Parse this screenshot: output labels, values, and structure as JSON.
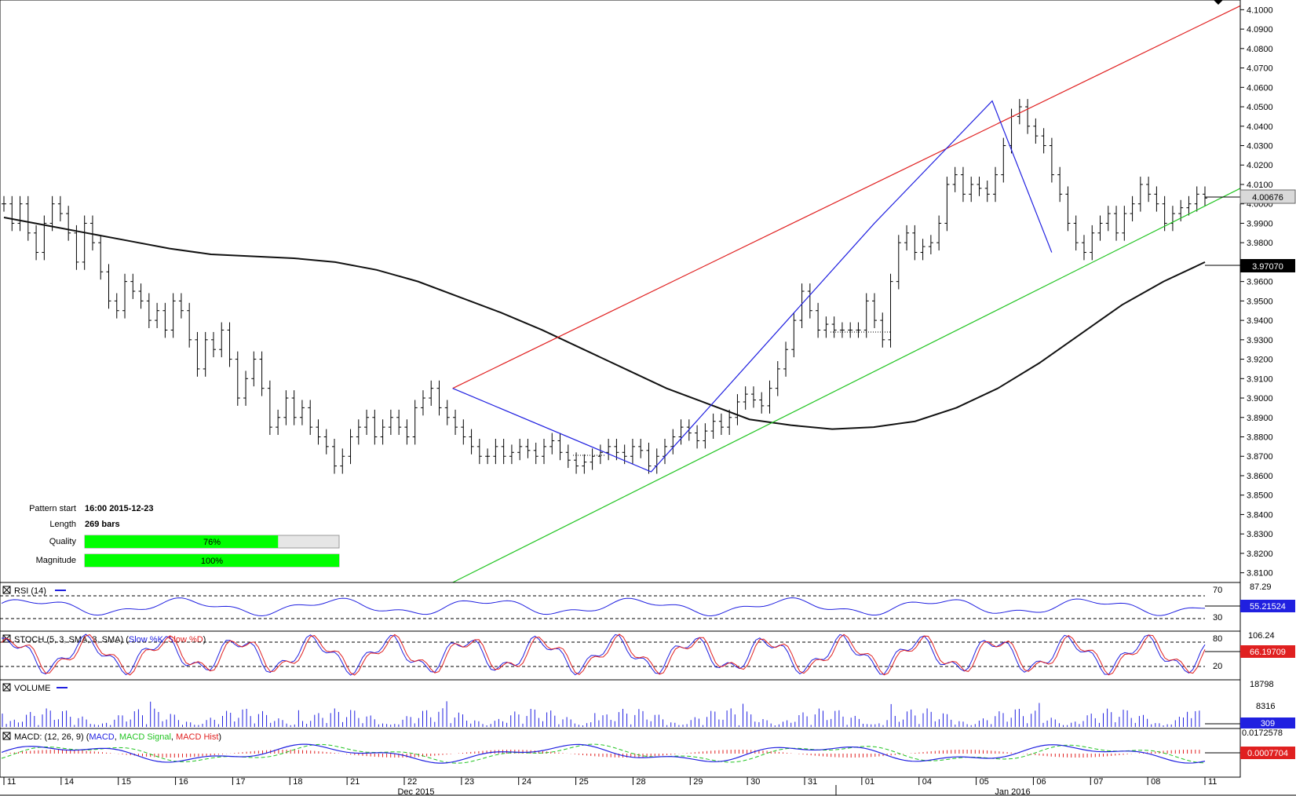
{
  "chart_data": {
    "type": "candlestick",
    "pattern_info": {
      "pattern_start_label": "Pattern start",
      "pattern_start_value": "16:00 2015-12-23",
      "length_label": "Length",
      "length_value": "269 bars",
      "quality_label": "Quality",
      "quality_value": "76%",
      "quality_fraction": 0.76,
      "magnitude_label": "Magnitude",
      "magnitude_value": "100%",
      "magnitude_fraction": 1.0
    },
    "price_axis": {
      "ylim": [
        3.805,
        4.105
      ],
      "ticks": [
        "4.1000",
        "4.0900",
        "4.0800",
        "4.0700",
        "4.0600",
        "4.0500",
        "4.0400",
        "4.0300",
        "4.0200",
        "4.0100",
        "4.0000",
        "3.9900",
        "3.9800",
        "3.9700",
        "3.9600",
        "3.9500",
        "3.9400",
        "3.9300",
        "3.9200",
        "3.9100",
        "3.9000",
        "3.8900",
        "3.8800",
        "3.8700",
        "3.8600",
        "3.8500",
        "3.8400",
        "3.8300",
        "3.8200",
        "3.8100"
      ],
      "current_price_label": "4.00676",
      "ma_price_label": "3.97070"
    },
    "x_axis": {
      "day_labels": [
        "11",
        "14",
        "15",
        "16",
        "17",
        "18",
        "21",
        "22",
        "23",
        "24",
        "25",
        "28",
        "29",
        "30",
        "31",
        "01",
        "04",
        "05",
        "06",
        "07",
        "08",
        "11"
      ],
      "month_labels": [
        "Dec 2015",
        "Jan 2016"
      ]
    },
    "price_series": [
      4.0,
      3.99,
      4.0,
      3.985,
      3.975,
      3.99,
      4.0,
      3.995,
      3.985,
      3.97,
      3.99,
      3.98,
      3.965,
      3.95,
      3.945,
      3.96,
      3.955,
      3.95,
      3.94,
      3.945,
      3.935,
      3.95,
      3.945,
      3.93,
      3.915,
      3.93,
      3.925,
      3.935,
      3.92,
      3.9,
      3.91,
      3.92,
      3.905,
      3.885,
      3.89,
      3.9,
      3.89,
      3.895,
      3.885,
      3.88,
      3.875,
      3.865,
      3.87,
      3.88,
      3.885,
      3.89,
      3.88,
      3.885,
      3.89,
      3.885,
      3.88,
      3.895,
      3.9,
      3.905,
      3.895,
      3.89,
      3.885,
      3.88,
      3.875,
      3.87,
      3.87,
      3.875,
      3.87,
      3.872,
      3.875,
      3.873,
      3.87,
      3.875,
      3.878,
      3.872,
      3.868,
      3.865,
      3.867,
      3.87,
      3.872,
      3.875,
      3.872,
      3.87,
      3.875,
      3.873,
      3.865,
      3.87,
      3.875,
      3.88,
      3.885,
      3.882,
      3.878,
      3.883,
      3.888,
      3.885,
      3.89,
      3.898,
      3.902,
      3.899,
      3.896,
      3.905,
      3.915,
      3.925,
      3.94,
      3.955,
      3.945,
      3.935,
      3.938,
      3.935,
      3.935,
      3.935,
      3.935,
      3.95,
      3.94,
      3.93,
      3.96,
      3.98,
      3.985,
      3.975,
      3.978,
      3.98,
      3.99,
      4.01,
      4.015,
      4.005,
      4.01,
      4.008,
      4.005,
      4.015,
      4.03,
      4.045,
      4.05,
      4.04,
      4.035,
      4.03,
      4.015,
      4.005,
      3.99,
      3.98,
      3.975,
      3.985,
      3.99,
      3.995,
      3.985,
      3.995,
      4.0,
      4.01,
      4.005,
      4.0,
      3.99,
      3.995,
      3.998,
      4.0,
      4.005,
      4.003
    ],
    "overlays": {
      "ma_series": [
        3.993,
        3.989,
        3.985,
        3.981,
        3.977,
        3.974,
        3.973,
        3.972,
        3.97,
        3.966,
        3.96,
        3.952,
        3.944,
        3.935,
        3.925,
        3.915,
        3.905,
        3.897,
        3.889,
        3.886,
        3.884,
        3.885,
        3.888,
        3.895,
        3.905,
        3.918,
        3.933,
        3.948,
        3.96,
        3.97
      ],
      "channel_upper": {
        "from": [
          0.365,
          3.905
        ],
        "to": [
          1.0,
          4.102
        ],
        "color": "#e02020"
      },
      "channel_lower": {
        "from": [
          0.365,
          3.805
        ],
        "to": [
          1.0,
          4.008
        ],
        "color": "#22c422"
      },
      "zigzag": [
        [
          0.365,
          3.905
        ],
        [
          0.525,
          3.862
        ],
        [
          0.705,
          3.99
        ],
        [
          0.8,
          4.053
        ],
        [
          0.848,
          3.975
        ]
      ],
      "zigzag_color": "#2020e0"
    },
    "indicators": [
      {
        "name": "RSI",
        "label": "RSI (14)",
        "max_label": "87.29",
        "levels": [
          "70",
          "30"
        ],
        "value_label": "55.21524",
        "color": "#2020e0"
      },
      {
        "name": "STOCH",
        "label_prefix": "STOCH (5, 3, SMA, 3, SMA) (",
        "label_k": "Slow %K",
        "label_sep": ", ",
        "label_d": "Slow %D",
        "label_suffix": ")",
        "max_label": "106.24",
        "levels": [
          "80",
          "20"
        ],
        "value_label": "66.19709",
        "k_color": "#2020e0",
        "d_color": "#e02020"
      },
      {
        "name": "VOLUME",
        "label": "VOLUME",
        "max_label": "18798",
        "mid_label": "8316",
        "value_label": "309",
        "color": "#2020e0"
      },
      {
        "name": "MACD",
        "label_prefix": "MACD: (12, 26, 9) (",
        "label_macd": "MACD",
        "label_sep1": ", ",
        "label_signal": "MACD Signal",
        "label_sep2": ", ",
        "label_hist": "MACD Hist",
        "label_suffix": ")",
        "max_label": "0.0172578",
        "value_label": "0.0007704",
        "macd_color": "#2020e0",
        "signal_color": "#22c422",
        "hist_color": "#e02020"
      }
    ],
    "colors": {
      "current_price_box": "#d9d9d9",
      "ma_price_box": "#000000",
      "rsi_value_box": "#2020e0",
      "stoch_value_box": "#e02020",
      "volume_value_box": "#2020e0",
      "macd_value_box": "#e02020",
      "progress_fill": "#00ff00",
      "progress_track": "#e6e6e6"
    }
  }
}
